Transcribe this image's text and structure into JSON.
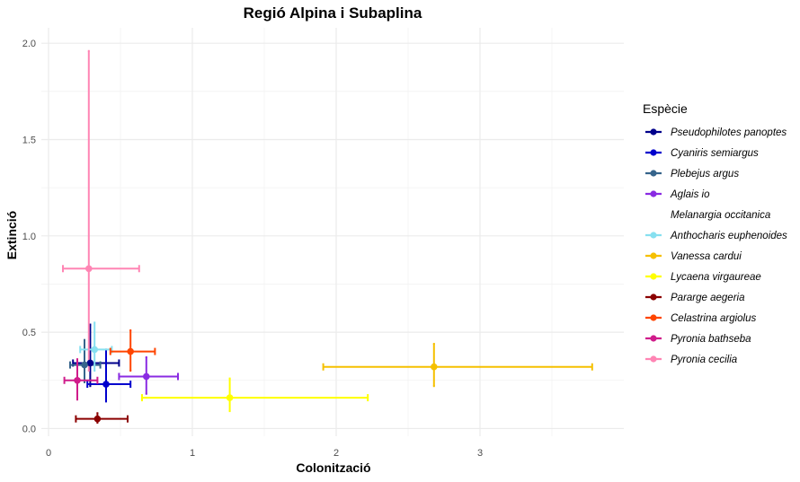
{
  "chart_data": {
    "type": "scatter",
    "title": "Regió Alpina i Subaplina",
    "xlabel": "Colonització",
    "ylabel": "Extinció",
    "xlim": [
      -0.05,
      4.0
    ],
    "ylim": [
      -0.04,
      2.08
    ],
    "x_ticks": [
      {
        "value": 0,
        "label": "0"
      },
      {
        "value": 1,
        "label": "1"
      },
      {
        "value": 2,
        "label": "2"
      },
      {
        "value": 3,
        "label": "3"
      }
    ],
    "y_ticks": [
      {
        "value": 0,
        "label": "0.0"
      },
      {
        "value": 0.5,
        "label": "0.5"
      },
      {
        "value": 1,
        "label": "1.0"
      },
      {
        "value": 1.5,
        "label": "1.5"
      },
      {
        "value": 2,
        "label": "2.0"
      }
    ],
    "grid": true,
    "legend_title": "Espècie",
    "legend_position": "right",
    "series": [
      {
        "name": "Pseudophilotes panoptes",
        "color": "#00008B",
        "x": 0.29,
        "y": 0.34,
        "x_low": 0.17,
        "x_high": 0.49,
        "y_low": 0.22,
        "y_high": 0.54
      },
      {
        "name": "Cyaniris semiargus",
        "color": "#0000CD",
        "x": 0.4,
        "y": 0.23,
        "x_low": 0.27,
        "x_high": 0.57,
        "y_low": 0.14,
        "y_high": 0.41
      },
      {
        "name": "Plebejus argus",
        "color": "#36648B",
        "x": 0.25,
        "y": 0.33,
        "x_low": 0.15,
        "x_high": 0.36,
        "y_low": 0.24,
        "y_high": 0.46
      },
      {
        "name": "Aglais io",
        "color": "#8A2BE2",
        "x": 0.68,
        "y": 0.27,
        "x_low": 0.49,
        "x_high": 0.9,
        "y_low": 0.18,
        "y_high": 0.37
      },
      {
        "name": "Melanargia occitanica",
        "color": "#FFFFFF"
      },
      {
        "name": "Anthocharis euphenoides",
        "color": "#87E0F0",
        "x": 0.32,
        "y": 0.41,
        "x_low": 0.22,
        "x_high": 0.44,
        "y_low": 0.3,
        "y_high": 0.55
      },
      {
        "name": "Vanessa cardui",
        "color": "#F5C000",
        "x": 2.68,
        "y": 0.32,
        "x_low": 1.91,
        "x_high": 3.78,
        "y_low": 0.22,
        "y_high": 0.44
      },
      {
        "name": "Lycaena virgaureae",
        "color": "#FFFF00",
        "x": 1.26,
        "y": 0.16,
        "x_low": 0.65,
        "x_high": 2.22,
        "y_low": 0.09,
        "y_high": 0.26
      },
      {
        "name": "Pararge aegeria",
        "color": "#8B0000",
        "x": 0.34,
        "y": 0.05,
        "x_low": 0.19,
        "x_high": 0.55,
        "y_low": 0.03,
        "y_high": 0.08
      },
      {
        "name": "Celastrina argiolus",
        "color": "#FF4500",
        "x": 0.57,
        "y": 0.4,
        "x_low": 0.43,
        "x_high": 0.74,
        "y_low": 0.3,
        "y_high": 0.51
      },
      {
        "name": "Pyronia bathseba",
        "color": "#D01C8B",
        "x": 0.2,
        "y": 0.25,
        "x_low": 0.11,
        "x_high": 0.34,
        "y_low": 0.15,
        "y_high": 0.36
      },
      {
        "name": "Pyronia cecilia",
        "color": "#FF85B4",
        "x": 0.28,
        "y": 0.83,
        "x_low": 0.1,
        "x_high": 0.63,
        "y_low": 0.3,
        "y_high": 1.96
      }
    ]
  }
}
